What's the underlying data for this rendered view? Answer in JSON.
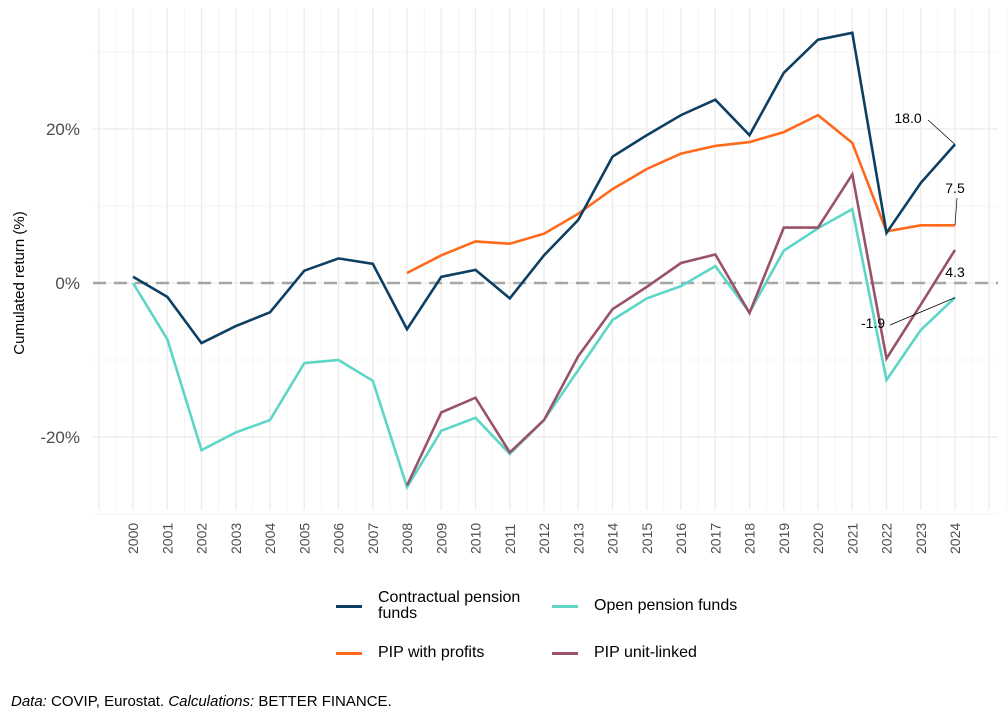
{
  "chart_data": {
    "type": "line",
    "title": "",
    "xlabel": "",
    "ylabel": "Cumulated return  (%)",
    "ylim": [
      -30,
      36
    ],
    "y_ticks": [
      -20,
      0,
      20
    ],
    "y_tick_labels": [
      "-20%",
      "0%",
      "20%"
    ],
    "x": [
      2000,
      2001,
      2002,
      2003,
      2004,
      2005,
      2006,
      2007,
      2008,
      2009,
      2010,
      2011,
      2012,
      2013,
      2014,
      2015,
      2016,
      2017,
      2018,
      2019,
      2020,
      2021,
      2022,
      2023,
      2024
    ],
    "x_tick_labels": [
      "2000",
      "2001",
      "2002",
      "2003",
      "2004",
      "2005",
      "2006",
      "2007",
      "2008",
      "2009",
      "2010",
      "2011",
      "2012",
      "2013",
      "2014",
      "2015",
      "2016",
      "2017",
      "2018",
      "2019",
      "2020",
      "2021",
      "2022",
      "2023",
      "2024"
    ],
    "grid": true,
    "reference_line": {
      "y": 0,
      "style": "dashed",
      "color": "#a6a6a6"
    },
    "legend_position": "bottom",
    "series": [
      {
        "name": "Contractual pension funds",
        "color": "#0d3f63",
        "values": [
          0.8,
          -1.8,
          -7.8,
          -5.6,
          -3.8,
          1.6,
          3.2,
          2.5,
          -6.0,
          0.8,
          1.7,
          -2.0,
          3.6,
          8.2,
          16.4,
          19.2,
          21.8,
          23.8,
          19.2,
          27.3,
          31.6,
          32.5,
          6.5,
          13.0,
          18.0
        ]
      },
      {
        "name": "Open pension funds",
        "color": "#5dd6c8",
        "values": [
          0.0,
          -7.3,
          -21.7,
          -19.4,
          -17.8,
          -10.4,
          -10.0,
          -12.7,
          -26.5,
          -19.2,
          -17.5,
          -22.2,
          -17.8,
          -11.3,
          -4.8,
          -2.0,
          -0.4,
          2.2,
          -3.8,
          4.2,
          7.1,
          9.6,
          -12.6,
          -6.1,
          -1.9
        ]
      },
      {
        "name": "PIP with profits",
        "color": "#ff6a1a",
        "values": [
          null,
          null,
          null,
          null,
          null,
          null,
          null,
          null,
          1.3,
          3.6,
          5.4,
          5.1,
          6.4,
          9.0,
          12.2,
          14.8,
          16.8,
          17.8,
          18.3,
          19.6,
          21.8,
          18.2,
          6.7,
          7.5,
          7.5
        ]
      },
      {
        "name": "PIP unit-linked",
        "color": "#9a5269",
        "values": [
          null,
          null,
          null,
          null,
          null,
          null,
          null,
          null,
          -26.3,
          -16.8,
          -14.9,
          -22.0,
          -17.8,
          -9.5,
          -3.4,
          -0.5,
          2.6,
          3.7,
          -3.9,
          7.2,
          7.2,
          14.1,
          -9.8,
          -2.8,
          4.3
        ]
      }
    ],
    "annotations": [
      {
        "series": "Contractual pension funds",
        "x": 2024,
        "label": "18.0"
      },
      {
        "series": "PIP with profits",
        "x": 2024,
        "label": "7.5"
      },
      {
        "series": "PIP unit-linked",
        "x": 2024,
        "label": "4.3"
      },
      {
        "series": "Open pension funds",
        "x": 2024,
        "label": "-1.9"
      }
    ]
  },
  "legend": {
    "items": [
      {
        "label_line1": "Contractual pension",
        "label_line2": "funds",
        "color": "#0d3f63"
      },
      {
        "label_line1": "Open pension funds",
        "label_line2": "",
        "color": "#5dd6c8"
      },
      {
        "label_line1": "PIP with profits",
        "label_line2": "",
        "color": "#ff6a1a"
      },
      {
        "label_line1": "PIP unit-linked",
        "label_line2": "",
        "color": "#9a5269"
      }
    ]
  },
  "caption": {
    "data_label": "Data:",
    "data_text": " COVIP, Eurostat. ",
    "calc_label": "Calculations:",
    "calc_text": " BETTER FINANCE."
  }
}
